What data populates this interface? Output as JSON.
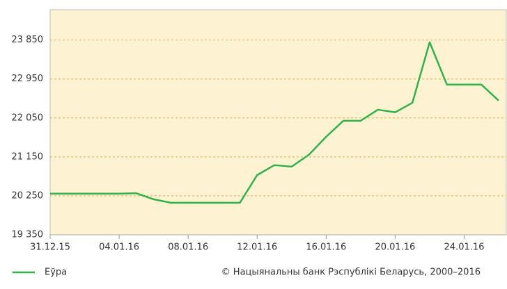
{
  "chart_data": {
    "type": "line",
    "categories": [
      "31.12.15",
      null,
      null,
      null,
      "04.01.16",
      null,
      null,
      null,
      "08.01.16",
      null,
      null,
      null,
      "12.01.16",
      null,
      null,
      null,
      "16.01.16",
      null,
      null,
      null,
      "20.01.16",
      null,
      null,
      null,
      "24.01.16",
      null,
      null
    ],
    "series": [
      {
        "name": "Еўра",
        "color": "#2eb24a",
        "values": [
          20300,
          20300,
          20300,
          20300,
          20300,
          20310,
          20170,
          20090,
          20090,
          20090,
          20090,
          20090,
          20730,
          20960,
          20925,
          21200,
          21615,
          21985,
          21985,
          22240,
          22180,
          22400,
          23800,
          22820,
          22820,
          22820,
          22450
        ]
      }
    ],
    "ylim": [
      19350,
      24550
    ],
    "yticks": [
      {
        "value": 19350,
        "label": "19 350"
      },
      {
        "value": 20250,
        "label": "20 250"
      },
      {
        "value": 21150,
        "label": "21 150"
      },
      {
        "value": 22050,
        "label": "22 050"
      },
      {
        "value": 22950,
        "label": "22 950"
      },
      {
        "value": 23850,
        "label": "23 850"
      }
    ],
    "grid": true,
    "legend": "bottom-left",
    "source": "© Нацыянальны банк Рэспублікі Беларусь, 2000–2016"
  }
}
